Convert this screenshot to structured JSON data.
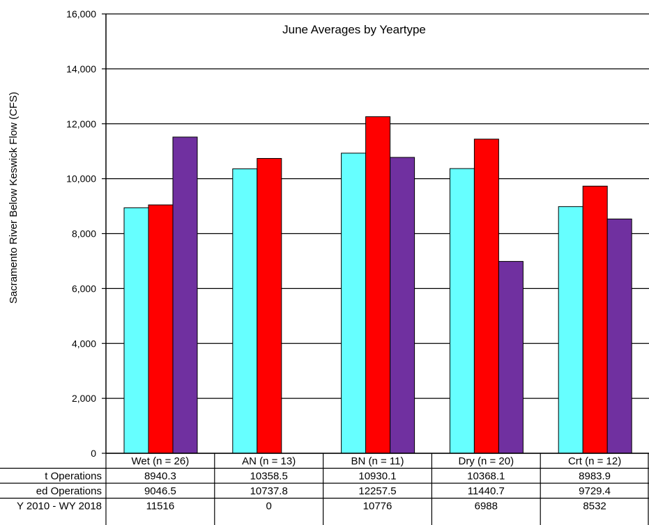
{
  "chart_data": {
    "type": "bar",
    "title": "June Averages by Yeartype",
    "ylabel": "Sacramento River Below Keswick Flow (CFS)",
    "ylim": [
      0,
      16000
    ],
    "yticks": [
      0,
      2000,
      4000,
      6000,
      8000,
      10000,
      12000,
      14000,
      16000
    ],
    "ytick_labels": [
      "0",
      "2,000",
      "4,000",
      "6,000",
      "8,000",
      "10,000",
      "12,000",
      "14,000",
      "16,000"
    ],
    "grid": true,
    "categories": [
      "Wet (n = 26)",
      "AN  (n = 13)",
      "BN  (n = 11)",
      "Dry (n = 20)",
      "Crt (n = 12)"
    ],
    "series": [
      {
        "name": "t Operations",
        "color": "#66FFFF",
        "values": [
          8940.3,
          10358.5,
          10930.1,
          10368.1,
          8983.9
        ],
        "labels": [
          "8940.3",
          "10358.5",
          "10930.1",
          "10368.1",
          "8983.9"
        ]
      },
      {
        "name": "ed Operations",
        "color": "#FF0000",
        "values": [
          9046.5,
          10737.8,
          12257.5,
          11440.7,
          9729.4
        ],
        "labels": [
          "9046.5",
          "10737.8",
          "12257.5",
          "11440.7",
          "9729.4"
        ]
      },
      {
        "name": "Y 2010 - WY 2018",
        "color": "#7030A0",
        "values": [
          11516,
          0,
          10776,
          6988,
          8532
        ],
        "labels": [
          "11516",
          "0",
          "10776",
          "6988",
          "8532"
        ]
      }
    ]
  }
}
